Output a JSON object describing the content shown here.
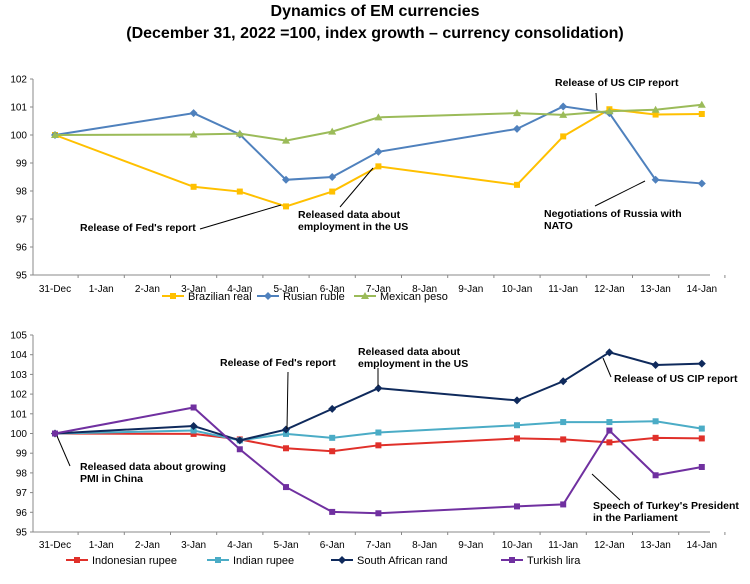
{
  "page": {
    "title_line1": "Dynamics of EM currencies",
    "title_line2": "(December 31, 2022 =100, index growth – currency consolidation)"
  },
  "chart_data": [
    {
      "type": "line",
      "categories": [
        "31-Dec",
        "1-Jan",
        "2-Jan",
        "3-Jan",
        "4-Jan",
        "5-Jan",
        "6-Jan",
        "7-Jan",
        "8-Jan",
        "9-Jan",
        "10-Jan",
        "11-Jan",
        "12-Jan",
        "13-Jan",
        "14-Jan"
      ],
      "ylim": [
        95,
        102
      ],
      "yticks": [
        95,
        96,
        97,
        98,
        99,
        100,
        101,
        102
      ],
      "series": [
        {
          "name": "Brazilian real",
          "color": "#FFC000",
          "marker": "square",
          "points": [
            [
              0,
              100
            ],
            [
              3,
              98.15
            ],
            [
              4,
              97.98
            ],
            [
              5,
              97.45
            ],
            [
              6,
              97.98
            ],
            [
              7,
              98.88
            ],
            [
              10,
              98.22
            ],
            [
              11,
              99.95
            ],
            [
              12,
              100.92
            ],
            [
              13,
              100.73
            ],
            [
              14,
              100.75
            ]
          ]
        },
        {
          "name": "Rusian ruble",
          "color": "#4F81BD",
          "marker": "diamond",
          "points": [
            [
              0,
              100
            ],
            [
              3,
              100.78
            ],
            [
              4,
              100.02
            ],
            [
              5,
              98.4
            ],
            [
              6,
              98.5
            ],
            [
              7,
              99.4
            ],
            [
              10,
              100.22
            ],
            [
              11,
              101.02
            ],
            [
              12,
              100.78
            ],
            [
              13,
              98.4
            ],
            [
              14,
              98.27
            ]
          ]
        },
        {
          "name": "Mexican peso",
          "color": "#9BBB59",
          "marker": "triangle",
          "points": [
            [
              0,
              100
            ],
            [
              3,
              100.02
            ],
            [
              4,
              100.05
            ],
            [
              5,
              99.8
            ],
            [
              6,
              100.12
            ],
            [
              7,
              100.63
            ],
            [
              10,
              100.78
            ],
            [
              11,
              100.72
            ],
            [
              12,
              100.85
            ],
            [
              13,
              100.9
            ],
            [
              14,
              101.08
            ]
          ]
        }
      ],
      "annotations": [
        {
          "lines": [
            "Release of US CIP report"
          ]
        },
        {
          "lines": [
            "Release of Fed's report"
          ]
        },
        {
          "lines": [
            "Released data about",
            "employment in the US"
          ]
        },
        {
          "lines": [
            "Negotiations of Russia with",
            "NATO"
          ]
        }
      ]
    },
    {
      "type": "line",
      "categories": [
        "31-Dec",
        "1-Jan",
        "2-Jan",
        "3-Jan",
        "4-Jan",
        "5-Jan",
        "6-Jan",
        "7-Jan",
        "8-Jan",
        "9-Jan",
        "10-Jan",
        "11-Jan",
        "12-Jan",
        "13-Jan",
        "14-Jan"
      ],
      "ylim": [
        95,
        105
      ],
      "yticks": [
        95,
        96,
        97,
        98,
        99,
        100,
        101,
        102,
        103,
        104,
        105
      ],
      "series": [
        {
          "name": "Indonesian rupee",
          "color": "#E0302A",
          "marker": "square",
          "points": [
            [
              0,
              100
            ],
            [
              3,
              99.98
            ],
            [
              4,
              99.7
            ],
            [
              5,
              99.25
            ],
            [
              6,
              99.1
            ],
            [
              7,
              99.4
            ],
            [
              10,
              99.75
            ],
            [
              11,
              99.7
            ],
            [
              12,
              99.55
            ],
            [
              13,
              99.78
            ],
            [
              14,
              99.75
            ]
          ]
        },
        {
          "name": "Indian rupee",
          "color": "#4BACC6",
          "marker": "square",
          "points": [
            [
              0,
              100
            ],
            [
              3,
              100.15
            ],
            [
              4,
              99.65
            ],
            [
              5,
              99.98
            ],
            [
              6,
              99.78
            ],
            [
              7,
              100.05
            ],
            [
              10,
              100.42
            ],
            [
              11,
              100.58
            ],
            [
              12,
              100.58
            ],
            [
              13,
              100.62
            ],
            [
              14,
              100.25
            ]
          ]
        },
        {
          "name": "South African rand",
          "color": "#0F2A5C",
          "marker": "diamond",
          "points": [
            [
              0,
              100
            ],
            [
              3,
              100.38
            ],
            [
              4,
              99.65
            ],
            [
              5,
              100.2
            ],
            [
              6,
              101.25
            ],
            [
              7,
              102.3
            ],
            [
              10,
              101.68
            ],
            [
              11,
              102.65
            ],
            [
              12,
              104.12
            ],
            [
              13,
              103.48
            ],
            [
              14,
              103.55
            ]
          ]
        },
        {
          "name": "Turkish lira",
          "color": "#7030A0",
          "marker": "square",
          "points": [
            [
              0,
              100
            ],
            [
              3,
              101.32
            ],
            [
              4,
              99.2
            ],
            [
              5,
              97.28
            ],
            [
              6,
              96.02
            ],
            [
              7,
              95.95
            ],
            [
              10,
              96.3
            ],
            [
              11,
              96.4
            ],
            [
              12,
              100.15
            ],
            [
              13,
              97.88
            ],
            [
              14,
              98.3
            ]
          ]
        }
      ],
      "annotations": [
        {
          "lines": [
            "Release of Fed's report"
          ]
        },
        {
          "lines": [
            "Released data about",
            "employment in the US"
          ]
        },
        {
          "lines": [
            "Release of US CIP report"
          ]
        },
        {
          "lines": [
            "Released data about growing",
            "PMI in China"
          ]
        },
        {
          "lines": [
            "Speech of Turkey's President",
            "in the Parliament"
          ]
        }
      ]
    }
  ]
}
